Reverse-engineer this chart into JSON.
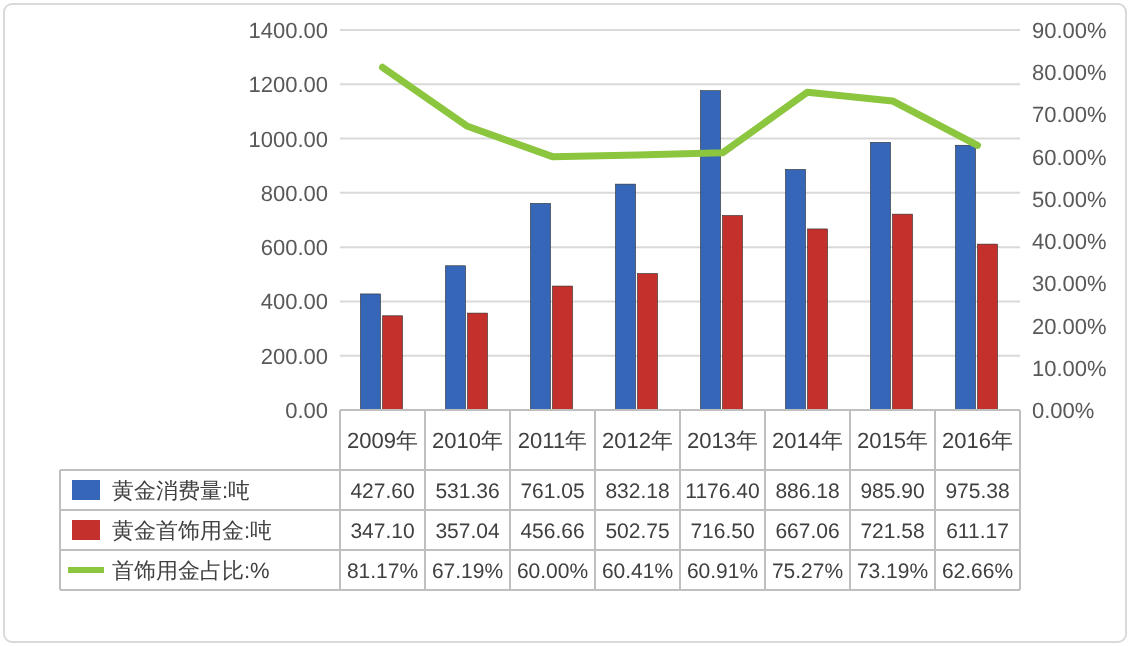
{
  "chart_data": {
    "type": "bar",
    "categories": [
      "2009年",
      "2010年",
      "2011年",
      "2012年",
      "2013年",
      "2014年",
      "2015年",
      "2016年"
    ],
    "series": [
      {
        "name": "黄金消费量:吨",
        "color": "#3566b8",
        "values": [
          427.6,
          531.36,
          761.05,
          832.18,
          1176.4,
          886.18,
          985.9,
          975.38
        ],
        "value_labels": [
          "427.60",
          "531.36",
          "761.05",
          "832.18",
          "1176.40",
          "886.18",
          "985.90",
          "975.38"
        ]
      },
      {
        "name": "黄金首饰用金:吨",
        "color": "#c4302b",
        "values": [
          347.1,
          357.04,
          456.66,
          502.75,
          716.5,
          667.06,
          721.58,
          611.17
        ],
        "value_labels": [
          "347.10",
          "357.04",
          "456.66",
          "502.75",
          "716.50",
          "667.06",
          "721.58",
          "611.17"
        ]
      },
      {
        "name": "首饰用金占比:%",
        "type": "line",
        "axis": "y2",
        "color": "#8cc63f",
        "values": [
          81.17,
          67.19,
          60.0,
          60.41,
          60.91,
          75.27,
          73.19,
          62.66
        ],
        "value_labels": [
          "81.17%",
          "67.19%",
          "60.00%",
          "60.41%",
          "60.91%",
          "75.27%",
          "73.19%",
          "62.66%"
        ]
      }
    ],
    "ylim": [
      0,
      1400
    ],
    "yticks": [
      {
        "value": 0,
        "label": "0.00"
      },
      {
        "value": 200,
        "label": "200.00"
      },
      {
        "value": 400,
        "label": "400.00"
      },
      {
        "value": 600,
        "label": "600.00"
      },
      {
        "value": 800,
        "label": "800.00"
      },
      {
        "value": 1000,
        "label": "1000.00"
      },
      {
        "value": 1200,
        "label": "1200.00"
      },
      {
        "value": 1400,
        "label": "1400.00"
      }
    ],
    "y2lim": [
      0,
      90
    ],
    "y2ticks": [
      {
        "value": 0,
        "label": "0.00%"
      },
      {
        "value": 10,
        "label": "10.00%"
      },
      {
        "value": 20,
        "label": "20.00%"
      },
      {
        "value": 30,
        "label": "30.00%"
      },
      {
        "value": 40,
        "label": "40.00%"
      },
      {
        "value": 50,
        "label": "50.00%"
      },
      {
        "value": 60,
        "label": "60.00%"
      },
      {
        "value": 70,
        "label": "70.00%"
      },
      {
        "value": 80,
        "label": "80.00%"
      },
      {
        "value": 90,
        "label": "90.00%"
      }
    ],
    "grid": "y",
    "legend": "bottom"
  }
}
